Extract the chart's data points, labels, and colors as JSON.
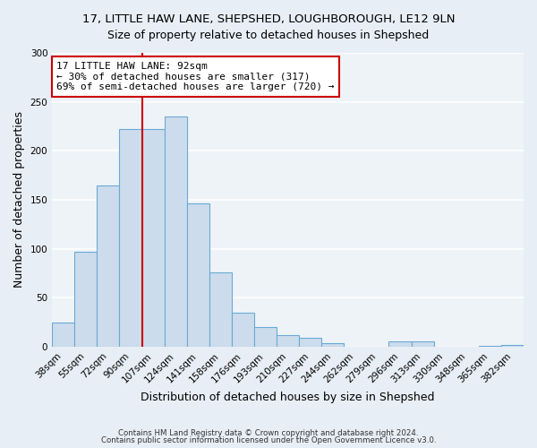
{
  "title": "17, LITTLE HAW LANE, SHEPSHED, LOUGHBOROUGH, LE12 9LN",
  "subtitle": "Size of property relative to detached houses in Shepshed",
  "xlabel": "Distribution of detached houses by size in Shepshed",
  "ylabel": "Number of detached properties",
  "bar_labels": [
    "38sqm",
    "55sqm",
    "72sqm",
    "90sqm",
    "107sqm",
    "124sqm",
    "141sqm",
    "158sqm",
    "176sqm",
    "193sqm",
    "210sqm",
    "227sqm",
    "244sqm",
    "262sqm",
    "279sqm",
    "296sqm",
    "313sqm",
    "330sqm",
    "348sqm",
    "365sqm",
    "382sqm"
  ],
  "bar_heights": [
    25,
    97,
    165,
    222,
    222,
    235,
    146,
    76,
    35,
    20,
    12,
    9,
    4,
    0,
    0,
    5,
    5,
    0,
    0,
    1,
    2
  ],
  "bar_color": "#ccdcec",
  "bar_edge_color": "#6aaad4",
  "vline_x": 3.5,
  "vline_color": "#cc0000",
  "annotation_line1": "17 LITTLE HAW LANE: 92sqm",
  "annotation_line2": "← 30% of detached houses are smaller (317)",
  "annotation_line3": "69% of semi-detached houses are larger (720) →",
  "annotation_box_edge": "#cc0000",
  "ylim": [
    0,
    300
  ],
  "yticks": [
    0,
    50,
    100,
    150,
    200,
    250,
    300
  ],
  "footer1": "Contains HM Land Registry data © Crown copyright and database right 2024.",
  "footer2": "Contains public sector information licensed under the Open Government Licence v3.0.",
  "bg_color": "#e8eef5",
  "plot_bg_color": "#eef3f8",
  "grid_color": "#ffffff",
  "title_fontsize": 9.5,
  "subtitle_fontsize": 9,
  "axis_label_fontsize": 9,
  "tick_fontsize": 7.5,
  "annotation_fontsize": 8
}
